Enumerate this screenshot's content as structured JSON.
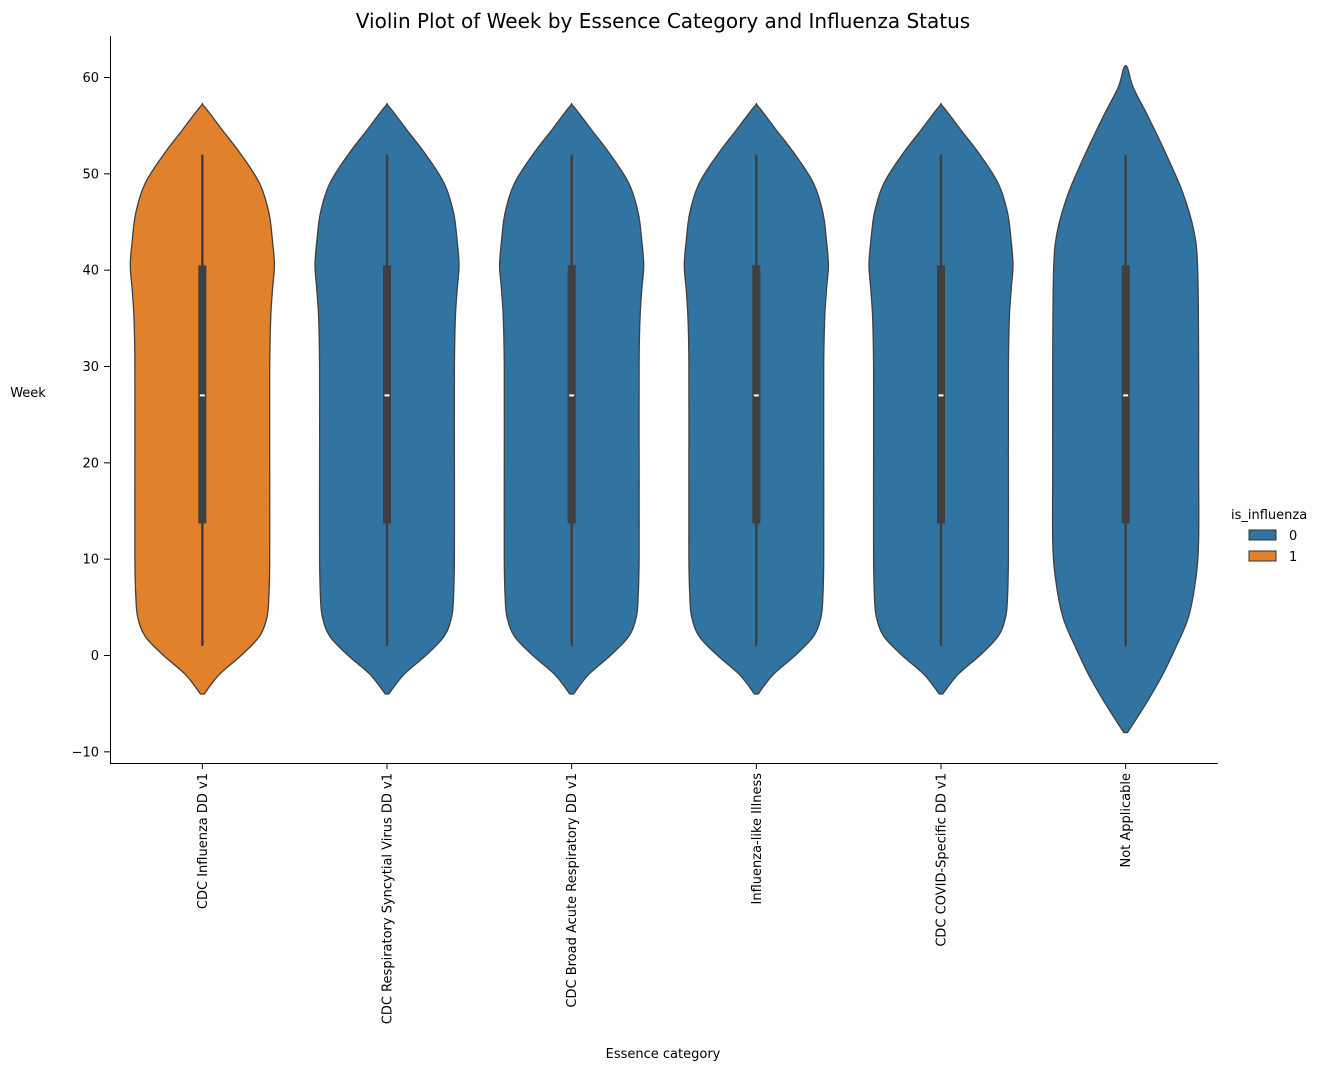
{
  "chart_data": {
    "type": "violin",
    "title": "Violin Plot of Week by Essence Category and Influenza Status",
    "xlabel": "Essence category",
    "ylabel": "Week",
    "ylim": [
      -11,
      64
    ],
    "yticks": [
      -10,
      0,
      10,
      20,
      30,
      40,
      50,
      60
    ],
    "categories": [
      "CDC Influenza DD v1",
      "CDC Respiratory Syncytial Virus DD v1",
      "CDC Broad Acute Respiratory DD v1",
      "Influenza-like Illness",
      "CDC COVID-Specific DD v1",
      "Not Applicable"
    ],
    "legend": {
      "title": "is_influenza",
      "position": "right",
      "entries": [
        {
          "label": "0",
          "color": "#3274a1"
        },
        {
          "label": "1",
          "color": "#e1812c"
        }
      ]
    },
    "violins": [
      {
        "category": "CDC Influenza DD v1",
        "group": "1",
        "color": "#e1812c",
        "min": 1,
        "q1": 13.7,
        "median": 27,
        "q3": 40.5,
        "max": 52,
        "kde_range": [
          -4,
          57
        ],
        "density": [
          [
            -4,
            0.02
          ],
          [
            -2,
            0.18
          ],
          [
            0,
            0.42
          ],
          [
            2,
            0.62
          ],
          [
            4,
            0.7
          ],
          [
            6,
            0.72
          ],
          [
            10,
            0.73
          ],
          [
            20,
            0.73
          ],
          [
            30,
            0.73
          ],
          [
            35,
            0.74
          ],
          [
            38,
            0.76
          ],
          [
            40.5,
            0.78
          ],
          [
            43,
            0.76
          ],
          [
            46,
            0.72
          ],
          [
            49,
            0.62
          ],
          [
            52,
            0.42
          ],
          [
            54.5,
            0.22
          ],
          [
            57,
            0.02
          ]
        ]
      },
      {
        "category": "CDC Respiratory Syncytial Virus DD v1",
        "group": "0",
        "color": "#3274a1",
        "min": 1,
        "q1": 13.7,
        "median": 27,
        "q3": 40.5,
        "max": 52,
        "kde_range": [
          -4,
          57
        ],
        "density": [
          [
            -4,
            0.02
          ],
          [
            -2,
            0.18
          ],
          [
            0,
            0.42
          ],
          [
            2,
            0.62
          ],
          [
            4,
            0.7
          ],
          [
            6,
            0.72
          ],
          [
            10,
            0.73
          ],
          [
            20,
            0.73
          ],
          [
            30,
            0.73
          ],
          [
            35,
            0.74
          ],
          [
            38,
            0.76
          ],
          [
            40.5,
            0.78
          ],
          [
            43,
            0.76
          ],
          [
            46,
            0.72
          ],
          [
            49,
            0.62
          ],
          [
            52,
            0.42
          ],
          [
            54.5,
            0.22
          ],
          [
            57,
            0.02
          ]
        ]
      },
      {
        "category": "CDC Broad Acute Respiratory DD v1",
        "group": "0",
        "color": "#3274a1",
        "min": 1,
        "q1": 13.7,
        "median": 27,
        "q3": 40.5,
        "max": 52,
        "kde_range": [
          -4,
          57
        ],
        "density": [
          [
            -4,
            0.02
          ],
          [
            -2,
            0.18
          ],
          [
            0,
            0.42
          ],
          [
            2,
            0.62
          ],
          [
            4,
            0.7
          ],
          [
            6,
            0.72
          ],
          [
            10,
            0.73
          ],
          [
            20,
            0.73
          ],
          [
            30,
            0.73
          ],
          [
            35,
            0.74
          ],
          [
            38,
            0.76
          ],
          [
            40.5,
            0.78
          ],
          [
            43,
            0.76
          ],
          [
            46,
            0.72
          ],
          [
            49,
            0.62
          ],
          [
            52,
            0.42
          ],
          [
            54.5,
            0.22
          ],
          [
            57,
            0.02
          ]
        ]
      },
      {
        "category": "Influenza-like Illness",
        "group": "0",
        "color": "#3274a1",
        "min": 1,
        "q1": 13.7,
        "median": 27,
        "q3": 40.5,
        "max": 52,
        "kde_range": [
          -4,
          57
        ],
        "density": [
          [
            -4,
            0.02
          ],
          [
            -2,
            0.18
          ],
          [
            0,
            0.42
          ],
          [
            2,
            0.62
          ],
          [
            4,
            0.7
          ],
          [
            6,
            0.72
          ],
          [
            10,
            0.73
          ],
          [
            20,
            0.73
          ],
          [
            30,
            0.73
          ],
          [
            35,
            0.74
          ],
          [
            38,
            0.76
          ],
          [
            40.5,
            0.78
          ],
          [
            43,
            0.76
          ],
          [
            46,
            0.72
          ],
          [
            49,
            0.62
          ],
          [
            52,
            0.42
          ],
          [
            54.5,
            0.22
          ],
          [
            57,
            0.02
          ]
        ]
      },
      {
        "category": "CDC COVID-Specific DD v1",
        "group": "0",
        "color": "#3274a1",
        "min": 1,
        "q1": 13.7,
        "median": 27,
        "q3": 40.5,
        "max": 52,
        "kde_range": [
          -4,
          57
        ],
        "density": [
          [
            -4,
            0.02
          ],
          [
            -2,
            0.18
          ],
          [
            0,
            0.42
          ],
          [
            2,
            0.62
          ],
          [
            4,
            0.7
          ],
          [
            6,
            0.72
          ],
          [
            10,
            0.73
          ],
          [
            20,
            0.73
          ],
          [
            30,
            0.73
          ],
          [
            35,
            0.74
          ],
          [
            38,
            0.76
          ],
          [
            40.5,
            0.78
          ],
          [
            43,
            0.76
          ],
          [
            46,
            0.72
          ],
          [
            49,
            0.62
          ],
          [
            52,
            0.42
          ],
          [
            54.5,
            0.22
          ],
          [
            57,
            0.02
          ]
        ]
      },
      {
        "category": "Not Applicable",
        "group": "0",
        "color": "#3274a1",
        "min": 1,
        "q1": 13.7,
        "median": 27,
        "q3": 40.5,
        "max": 52,
        "kde_range": [
          -8,
          61
        ],
        "density": [
          [
            -8,
            0.02
          ],
          [
            -5,
            0.22
          ],
          [
            -2,
            0.4
          ],
          [
            1,
            0.55
          ],
          [
            4,
            0.68
          ],
          [
            8,
            0.76
          ],
          [
            12,
            0.79
          ],
          [
            20,
            0.79
          ],
          [
            30,
            0.79
          ],
          [
            40,
            0.78
          ],
          [
            44,
            0.74
          ],
          [
            48,
            0.62
          ],
          [
            52,
            0.44
          ],
          [
            56,
            0.24
          ],
          [
            59,
            0.08
          ],
          [
            61,
            0.02
          ]
        ]
      }
    ]
  }
}
